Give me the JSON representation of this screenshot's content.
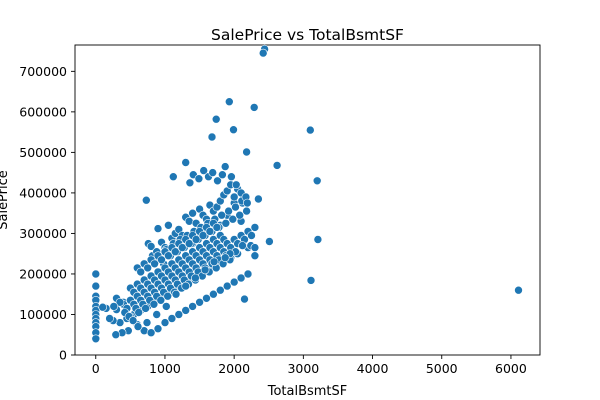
{
  "chart_data": {
    "type": "scatter",
    "title": "SalePrice vs TotalBsmtSF",
    "xlabel": "TotalBsmtSF",
    "ylabel": "SalePrice",
    "xlim": [
      -300,
      6420
    ],
    "ylim": [
      0,
      765000
    ],
    "x_ticks": [
      0,
      1000,
      2000,
      3000,
      4000,
      5000,
      6000
    ],
    "y_ticks": [
      0,
      100000,
      200000,
      300000,
      400000,
      500000,
      600000,
      700000
    ],
    "x_tick_labels": [
      "0",
      "1000",
      "2000",
      "3000",
      "4000",
      "5000",
      "6000"
    ],
    "y_tick_labels": [
      "0",
      "100000",
      "200000",
      "300000",
      "400000",
      "500000",
      "600000",
      "700000"
    ],
    "grid": false,
    "marker_color": "#1f77b4",
    "marker_edge_color": "#ffffff",
    "series": [
      {
        "x": [
          2440,
          2420,
          1930,
          1740,
          2290,
          1990,
          3100,
          1680,
          2180,
          2620,
          3200,
          1300,
          1120,
          2510,
          3210,
          3110,
          6110,
          2150,
          2350,
          2000,
          1900,
          2100,
          1800,
          1600,
          1500,
          1400,
          2200,
          2050,
          1950,
          1850,
          1750,
          1650,
          1550,
          1450,
          1350,
          1250,
          1150,
          1050,
          950,
          850,
          750,
          650,
          550,
          450,
          350,
          250,
          150,
          0,
          0,
          0,
          0,
          0,
          0,
          0,
          0,
          0,
          0,
          0,
          0,
          100,
          200,
          300,
          400,
          500,
          600,
          700,
          800,
          900,
          1000,
          1100,
          1200,
          1300,
          1400,
          1500,
          1600,
          1700,
          1800,
          1900,
          2000,
          2100,
          2200,
          730,
          760,
          800,
          900,
          950,
          1000,
          1050,
          1100,
          1150,
          1200,
          1250,
          1300,
          1350,
          1400,
          1450,
          1500,
          1550,
          1600,
          1650,
          1700,
          1750,
          1800,
          1850,
          1900,
          1950,
          2000,
          2050,
          2100,
          820,
          880,
          920,
          980,
          1020,
          1080,
          1120,
          1180,
          1220,
          1280,
          1320,
          1380,
          1420,
          1480,
          1520,
          1580,
          1620,
          1680,
          1720,
          1780,
          1820,
          1880,
          1920,
          1980,
          2020,
          2080,
          2120,
          2180,
          600,
          650,
          700,
          750,
          800,
          850,
          900,
          950,
          1000,
          1050,
          1100,
          1150,
          1200,
          1250,
          1300,
          1350,
          1400,
          1450,
          1500,
          1550,
          1600,
          1650,
          1700,
          1750,
          500,
          550,
          600,
          650,
          700,
          750,
          800,
          850,
          900,
          950,
          1000,
          1050,
          1100,
          1150,
          1200,
          1250,
          1300,
          1350,
          1400,
          1450,
          1500,
          1550,
          1600,
          1650,
          1700,
          1750,
          1800,
          1850,
          400,
          450,
          500,
          550,
          600,
          650,
          700,
          750,
          800,
          850,
          900,
          950,
          1000,
          1050,
          1100,
          1150,
          1200,
          1250,
          1300,
          1350,
          1400,
          1450,
          1500,
          1550,
          1600,
          1650,
          1700,
          1750,
          1800,
          1850,
          1900,
          1950,
          2000,
          2050,
          2100,
          2150,
          2200,
          2250,
          2300,
          300,
          350,
          420,
          480,
          540,
          580,
          620,
          680,
          720,
          780,
          840,
          880,
          940,
          980,
          1040,
          1080,
          1140,
          1180,
          1240,
          1280,
          1340,
          1380,
          1440,
          1480,
          1540,
          1580,
          1640,
          1680,
          1740,
          1780,
          1840,
          1880,
          1940,
          2020,
          2240,
          2300,
          1360,
          1410,
          1490,
          1560,
          1630,
          1690,
          1760,
          1830,
          1870,
          1960,
          2030,
          2110,
          2170,
          2190,
          2300,
          2120,
          1940,
          1870,
          1710,
          1580,
          1440,
          1300,
          1160,
          1020,
          880,
          740,
          610,
          470,
          380,
          260,
          290
        ],
        "y": [
          755000,
          745000,
          625000,
          582000,
          611000,
          556000,
          555000,
          538000,
          501000,
          468000,
          430000,
          475000,
          440000,
          280000,
          285000,
          184000,
          160000,
          138000,
          385000,
          375000,
          345000,
          330000,
          320000,
          305000,
          290000,
          275000,
          265000,
          250000,
          240000,
          230000,
          220000,
          210000,
          200000,
          190000,
          180000,
          170000,
          160000,
          150000,
          140000,
          130000,
          120000,
          110000,
          100000,
          90000,
          80000,
          85000,
          115000,
          200000,
          170000,
          145000,
          135000,
          120000,
          110000,
          100000,
          90000,
          80000,
          70000,
          55000,
          40000,
          118000,
          90000,
          112000,
          130000,
          95000,
          75000,
          60000,
          55000,
          65000,
          80000,
          90000,
          100000,
          110000,
          120000,
          130000,
          140000,
          150000,
          160000,
          170000,
          180000,
          190000,
          200000,
          382000,
          275000,
          268000,
          312000,
          278000,
          265000,
          320000,
          288000,
          300000,
          310000,
          295000,
          340000,
          330000,
          350000,
          325000,
          360000,
          345000,
          335000,
          370000,
          355000,
          365000,
          380000,
          395000,
          405000,
          420000,
          390000,
          410000,
          400000,
          245000,
          255000,
          235000,
          225000,
          260000,
          245000,
          275000,
          255000,
          285000,
          265000,
          295000,
          275000,
          305000,
          285000,
          315000,
          295000,
          325000,
          305000,
          335000,
          315000,
          345000,
          325000,
          355000,
          335000,
          365000,
          345000,
          375000,
          355000,
          215000,
          205000,
          225000,
          215000,
          235000,
          225000,
          245000,
          235000,
          255000,
          245000,
          265000,
          255000,
          275000,
          265000,
          285000,
          275000,
          295000,
          285000,
          305000,
          295000,
          315000,
          305000,
          325000,
          315000,
          165000,
          155000,
          175000,
          165000,
          185000,
          175000,
          195000,
          185000,
          205000,
          195000,
          215000,
          205000,
          225000,
          215000,
          235000,
          225000,
          245000,
          235000,
          255000,
          245000,
          265000,
          255000,
          275000,
          265000,
          285000,
          275000,
          295000,
          285000,
          125000,
          115000,
          135000,
          125000,
          145000,
          135000,
          155000,
          145000,
          165000,
          155000,
          175000,
          165000,
          185000,
          175000,
          195000,
          185000,
          205000,
          195000,
          215000,
          205000,
          225000,
          215000,
          235000,
          225000,
          245000,
          235000,
          255000,
          245000,
          265000,
          255000,
          275000,
          265000,
          285000,
          275000,
          295000,
          285000,
          305000,
          295000,
          315000,
          140000,
          130000,
          105000,
          95000,
          85000,
          115000,
          105000,
          125000,
          115000,
          135000,
          125000,
          145000,
          135000,
          155000,
          145000,
          165000,
          155000,
          175000,
          165000,
          185000,
          175000,
          195000,
          185000,
          205000,
          195000,
          215000,
          205000,
          225000,
          215000,
          235000,
          225000,
          245000,
          235000,
          255000,
          270000,
          245000,
          425000,
          445000,
          435000,
          455000,
          440000,
          450000,
          430000,
          445000,
          465000,
          440000,
          420000,
          380000,
          390000,
          375000,
          265000,
          270000,
          250000,
          240000,
          230000,
          210000,
          190000,
          170000,
          150000,
          120000,
          100000,
          80000,
          70000,
          60000,
          55000,
          120000,
          50000
        ]
      }
    ]
  }
}
